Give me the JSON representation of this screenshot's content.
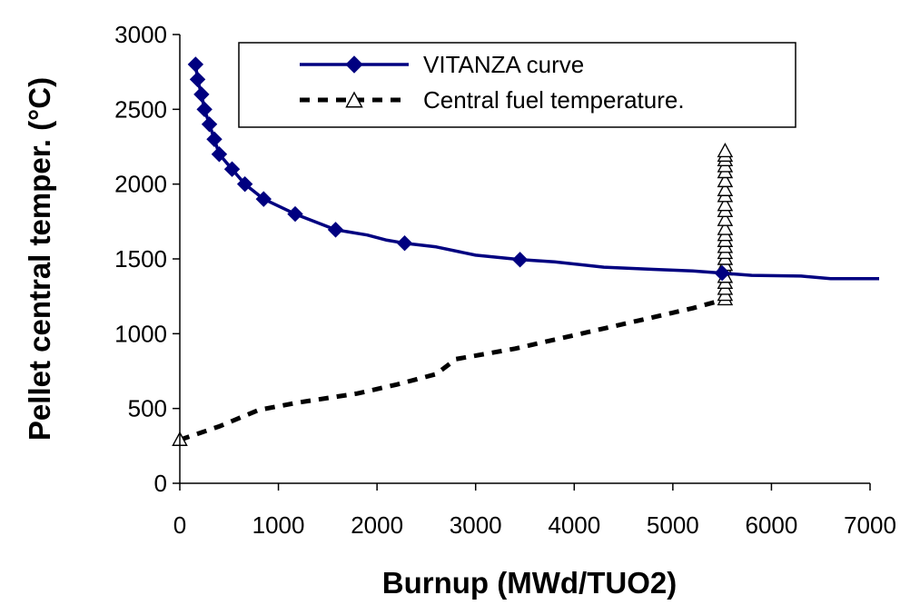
{
  "chart_data": {
    "type": "line",
    "title": "",
    "xlabel": "Burnup (MWd/TUO2)",
    "ylabel": "Pellet central temper. (°C)",
    "xlim": [
      0,
      7000
    ],
    "ylim": [
      0,
      3000
    ],
    "xticks": [
      0,
      1000,
      2000,
      3000,
      4000,
      5000,
      6000,
      7000
    ],
    "yticks": [
      0,
      500,
      1000,
      1500,
      2000,
      2500,
      3000
    ],
    "grid": false,
    "legend_position": "top-right",
    "series": [
      {
        "name": "VITANZA curve",
        "color": "#000080",
        "style": "solid",
        "marker": "diamond",
        "line": [
          [
            160,
            2800
          ],
          [
            180,
            2700
          ],
          [
            220,
            2600
          ],
          [
            250,
            2500
          ],
          [
            300,
            2400
          ],
          [
            350,
            2300
          ],
          [
            400,
            2200
          ],
          [
            530,
            2100
          ],
          [
            660,
            2000
          ],
          [
            850,
            1900
          ],
          [
            1170,
            1800
          ],
          [
            1580,
            1695
          ],
          [
            1900,
            1660
          ],
          [
            2100,
            1625
          ],
          [
            2280,
            1605
          ],
          [
            2600,
            1580
          ],
          [
            3000,
            1525
          ],
          [
            3450,
            1495
          ],
          [
            3800,
            1480
          ],
          [
            4300,
            1445
          ],
          [
            4800,
            1430
          ],
          [
            5200,
            1420
          ],
          [
            5500,
            1405
          ],
          [
            5800,
            1390
          ],
          [
            6300,
            1385
          ],
          [
            6600,
            1368
          ],
          [
            7100,
            1368
          ]
        ],
        "markers": [
          [
            160,
            2800
          ],
          [
            180,
            2700
          ],
          [
            220,
            2600
          ],
          [
            250,
            2500
          ],
          [
            300,
            2400
          ],
          [
            350,
            2300
          ],
          [
            400,
            2200
          ],
          [
            530,
            2100
          ],
          [
            660,
            2000
          ],
          [
            850,
            1900
          ],
          [
            1170,
            1800
          ],
          [
            1580,
            1695
          ],
          [
            2280,
            1605
          ],
          [
            3450,
            1495
          ],
          [
            5500,
            1405
          ]
        ]
      },
      {
        "name": "Central fuel temperature.",
        "color": "#000000",
        "style": "dashed",
        "marker": "triangle-open",
        "line": [
          [
            0,
            290
          ],
          [
            400,
            380
          ],
          [
            800,
            490
          ],
          [
            1200,
            540
          ],
          [
            1800,
            600
          ],
          [
            2200,
            660
          ],
          [
            2600,
            730
          ],
          [
            2800,
            830
          ],
          [
            3400,
            900
          ],
          [
            4000,
            990
          ],
          [
            4600,
            1080
          ],
          [
            5200,
            1170
          ],
          [
            5530,
            1230
          ]
        ],
        "markers": [
          [
            0,
            290
          ],
          [
            5530,
            1230
          ],
          [
            5530,
            1260
          ],
          [
            5530,
            1300
          ],
          [
            5530,
            1340
          ],
          [
            5530,
            1380
          ],
          [
            5530,
            1430
          ],
          [
            5530,
            1460
          ],
          [
            5530,
            1500
          ],
          [
            5530,
            1540
          ],
          [
            5530,
            1580
          ],
          [
            5530,
            1620
          ],
          [
            5530,
            1660
          ],
          [
            5530,
            1700
          ],
          [
            5530,
            1760
          ],
          [
            5530,
            1820
          ],
          [
            5530,
            1860
          ],
          [
            5530,
            1920
          ],
          [
            5530,
            1960
          ],
          [
            5530,
            2020
          ],
          [
            5530,
            2080
          ],
          [
            5530,
            2120
          ],
          [
            5530,
            2160
          ],
          [
            5530,
            2190
          ],
          [
            5530,
            2220
          ]
        ]
      }
    ]
  }
}
